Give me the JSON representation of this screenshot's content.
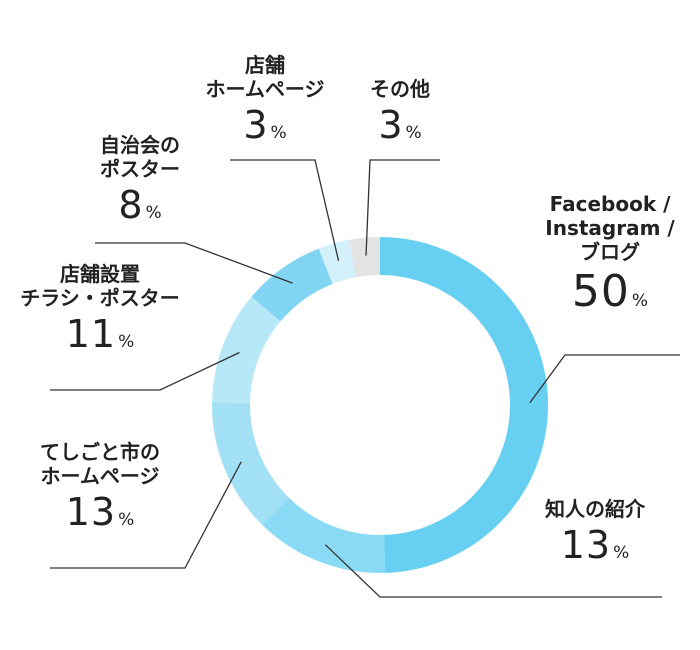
{
  "chart_data": {
    "type": "pie",
    "style": "donut",
    "title": "",
    "categories": [
      "Facebook / Instagram / ブログ",
      "知人の紹介",
      "てしごと市のホームページ",
      "店舗設置チラシ・ポスター",
      "自治会のポスター",
      "店舗ホームページ",
      "その他"
    ],
    "values": [
      50,
      13,
      13,
      11,
      8,
      3,
      3
    ],
    "unit": "%",
    "colors": [
      "#66cff2",
      "#8adaf5",
      "#a2e0f5",
      "#b7e8f7",
      "#82d4f3",
      "#d2f1fb",
      "#e3e3e3"
    ],
    "labels": [
      {
        "lines": [
          "Facebook /",
          "Instagram /",
          "ブログ"
        ],
        "value": "50",
        "unit": "%"
      },
      {
        "lines": [
          "知人の紹介"
        ],
        "value": "13",
        "unit": "%"
      },
      {
        "lines": [
          "てしごと市の",
          "ホームページ"
        ],
        "value": "13",
        "unit": "%"
      },
      {
        "lines": [
          "店舗設置",
          "チラシ・ポスター"
        ],
        "value": "11",
        "unit": "%"
      },
      {
        "lines": [
          "自治会の",
          "ポスター"
        ],
        "value": "8",
        "unit": "%"
      },
      {
        "lines": [
          "店舗",
          "ホームページ"
        ],
        "value": "3",
        "unit": "%"
      },
      {
        "lines": [
          "その他"
        ],
        "value": "3",
        "unit": "%"
      }
    ],
    "legend": "none"
  }
}
